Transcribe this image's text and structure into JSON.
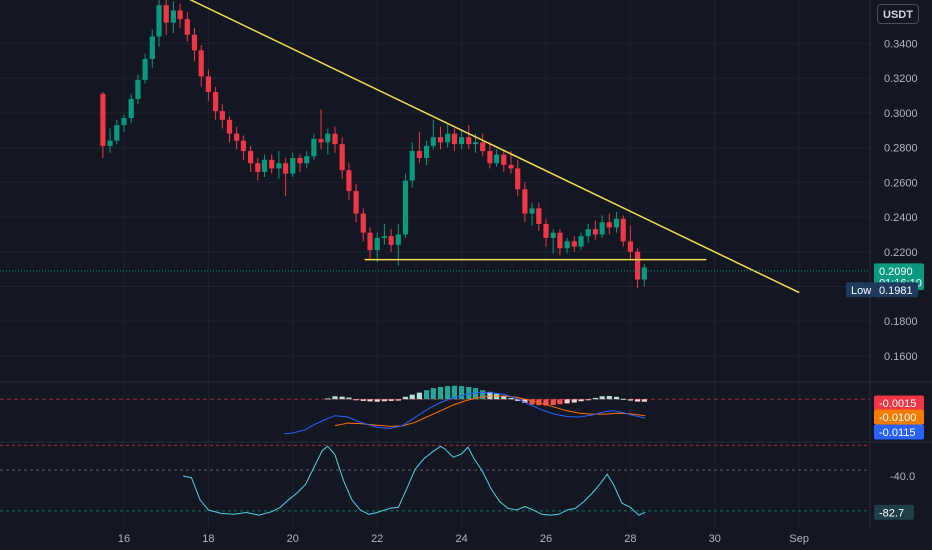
{
  "currency_button": "USDT",
  "chart_data": [
    {
      "type": "candlestick",
      "title": "",
      "ylim": [
        0.145,
        0.365
      ],
      "y_ticks": [
        "0.3400",
        "0.3200",
        "0.3000",
        "0.2800",
        "0.2600",
        "0.2400",
        "0.2200",
        "0.1800",
        "0.1600"
      ],
      "x_ticks": [
        "16",
        "18",
        "20",
        "22",
        "24",
        "26",
        "28",
        "30",
        "Sep"
      ],
      "x_tick_days": [
        16,
        18,
        20,
        22,
        24,
        26,
        28,
        30,
        32
      ],
      "candles": [
        [
          15.5,
          0.311,
          0.312,
          0.274,
          0.281
        ],
        [
          15.67,
          0.281,
          0.291,
          0.277,
          0.284
        ],
        [
          15.83,
          0.284,
          0.296,
          0.282,
          0.293
        ],
        [
          16.0,
          0.293,
          0.299,
          0.289,
          0.297
        ],
        [
          16.17,
          0.297,
          0.311,
          0.294,
          0.308
        ],
        [
          16.33,
          0.308,
          0.322,
          0.305,
          0.319
        ],
        [
          16.5,
          0.319,
          0.334,
          0.317,
          0.331
        ],
        [
          16.67,
          0.331,
          0.348,
          0.326,
          0.344
        ],
        [
          16.83,
          0.344,
          0.365,
          0.338,
          0.362
        ],
        [
          17.0,
          0.362,
          0.365,
          0.345,
          0.352
        ],
        [
          17.17,
          0.352,
          0.364,
          0.346,
          0.359
        ],
        [
          17.33,
          0.359,
          0.363,
          0.349,
          0.354
        ],
        [
          17.5,
          0.354,
          0.358,
          0.341,
          0.345
        ],
        [
          17.67,
          0.345,
          0.349,
          0.33,
          0.336
        ],
        [
          17.83,
          0.336,
          0.339,
          0.315,
          0.321
        ],
        [
          18.0,
          0.321,
          0.325,
          0.307,
          0.312
        ],
        [
          18.17,
          0.312,
          0.315,
          0.296,
          0.301
        ],
        [
          18.33,
          0.301,
          0.305,
          0.291,
          0.296
        ],
        [
          18.5,
          0.296,
          0.298,
          0.283,
          0.288
        ],
        [
          18.67,
          0.288,
          0.292,
          0.279,
          0.284
        ],
        [
          18.83,
          0.284,
          0.287,
          0.273,
          0.278
        ],
        [
          19.0,
          0.278,
          0.281,
          0.266,
          0.271
        ],
        [
          19.17,
          0.271,
          0.274,
          0.261,
          0.266
        ],
        [
          19.33,
          0.266,
          0.276,
          0.263,
          0.273
        ],
        [
          19.5,
          0.273,
          0.276,
          0.265,
          0.268
        ],
        [
          19.67,
          0.268,
          0.278,
          0.262,
          0.271
        ],
        [
          19.83,
          0.271,
          0.274,
          0.252,
          0.265
        ],
        [
          20.0,
          0.265,
          0.277,
          0.263,
          0.274
        ],
        [
          20.17,
          0.274,
          0.276,
          0.266,
          0.271
        ],
        [
          20.33,
          0.271,
          0.278,
          0.268,
          0.275
        ],
        [
          20.5,
          0.275,
          0.288,
          0.273,
          0.285
        ],
        [
          20.67,
          0.285,
          0.302,
          0.279,
          0.283
        ],
        [
          20.83,
          0.283,
          0.291,
          0.276,
          0.288
        ],
        [
          21.0,
          0.288,
          0.292,
          0.277,
          0.282
        ],
        [
          21.17,
          0.282,
          0.286,
          0.262,
          0.267
        ],
        [
          21.33,
          0.267,
          0.271,
          0.25,
          0.255
        ],
        [
          21.5,
          0.255,
          0.259,
          0.237,
          0.242
        ],
        [
          21.67,
          0.242,
          0.245,
          0.226,
          0.231
        ],
        [
          21.83,
          0.231,
          0.234,
          0.216,
          0.221
        ],
        [
          22.0,
          0.221,
          0.231,
          0.214,
          0.228
        ],
        [
          22.17,
          0.228,
          0.236,
          0.224,
          0.229
        ],
        [
          22.33,
          0.229,
          0.233,
          0.22,
          0.224
        ],
        [
          22.5,
          0.224,
          0.236,
          0.212,
          0.23
        ],
        [
          22.67,
          0.23,
          0.265,
          0.228,
          0.261
        ],
        [
          22.83,
          0.261,
          0.283,
          0.257,
          0.278
        ],
        [
          23.0,
          0.278,
          0.289,
          0.271,
          0.274
        ],
        [
          23.17,
          0.274,
          0.284,
          0.27,
          0.281
        ],
        [
          23.33,
          0.281,
          0.296,
          0.279,
          0.286
        ],
        [
          23.5,
          0.286,
          0.292,
          0.279,
          0.283
        ],
        [
          23.67,
          0.283,
          0.294,
          0.28,
          0.288
        ],
        [
          23.83,
          0.288,
          0.291,
          0.278,
          0.282
        ],
        [
          24.0,
          0.282,
          0.29,
          0.279,
          0.286
        ],
        [
          24.17,
          0.286,
          0.293,
          0.279,
          0.282
        ],
        [
          24.33,
          0.282,
          0.288,
          0.277,
          0.283
        ],
        [
          24.5,
          0.283,
          0.288,
          0.275,
          0.278
        ],
        [
          24.67,
          0.278,
          0.283,
          0.268,
          0.271
        ],
        [
          24.83,
          0.271,
          0.279,
          0.269,
          0.276
        ],
        [
          25.0,
          0.276,
          0.278,
          0.266,
          0.27
        ],
        [
          25.17,
          0.27,
          0.278,
          0.265,
          0.268
        ],
        [
          25.33,
          0.268,
          0.273,
          0.252,
          0.256
        ],
        [
          25.5,
          0.256,
          0.26,
          0.237,
          0.242
        ],
        [
          25.67,
          0.242,
          0.248,
          0.235,
          0.245
        ],
        [
          25.83,
          0.245,
          0.248,
          0.232,
          0.236
        ],
        [
          26.0,
          0.236,
          0.239,
          0.223,
          0.228
        ],
        [
          26.17,
          0.228,
          0.233,
          0.219,
          0.231
        ],
        [
          26.33,
          0.231,
          0.233,
          0.218,
          0.222
        ],
        [
          26.5,
          0.222,
          0.228,
          0.219,
          0.226
        ],
        [
          26.67,
          0.226,
          0.229,
          0.22,
          0.223
        ],
        [
          26.83,
          0.223,
          0.231,
          0.221,
          0.229
        ],
        [
          27.0,
          0.229,
          0.236,
          0.225,
          0.233
        ],
        [
          27.17,
          0.233,
          0.238,
          0.227,
          0.23
        ],
        [
          27.33,
          0.23,
          0.241,
          0.228,
          0.237
        ],
        [
          27.5,
          0.237,
          0.242,
          0.23,
          0.234
        ],
        [
          27.67,
          0.234,
          0.243,
          0.231,
          0.239
        ],
        [
          27.83,
          0.239,
          0.241,
          0.223,
          0.226
        ],
        [
          28.0,
          0.226,
          0.235,
          0.215,
          0.22
        ],
        [
          28.17,
          0.22,
          0.222,
          0.199,
          0.204
        ],
        [
          28.33,
          0.204,
          0.213,
          0.2,
          0.211
        ]
      ],
      "trendlines": [
        {
          "from": [
            17.5,
            0.366
          ],
          "to": [
            32.0,
            0.1965
          ],
          "color": "#f5dd4b"
        },
        {
          "from": [
            21.7,
            0.2155
          ],
          "to": [
            29.8,
            0.2155
          ],
          "color": "#f5dd4b"
        }
      ],
      "price_line": 0.209,
      "labels": [
        {
          "text": "0.2090",
          "value": 0.209,
          "bg": "#089981"
        },
        {
          "text": "01:16:10",
          "value": 0.2045,
          "bg": "#089981"
        },
        {
          "text": "Low",
          "value": 0.1981,
          "bg": "#1e3a5f"
        },
        {
          "text": "0.1981",
          "value": 0.1981,
          "bg": "#1e3a5f"
        }
      ]
    },
    {
      "type": "macd",
      "histogram": [
        [
          20.83,
          0.0005
        ],
        [
          21.0,
          0.0018
        ],
        [
          21.17,
          0.0016
        ],
        [
          21.33,
          0.001
        ],
        [
          21.5,
          -0.0005
        ],
        [
          21.67,
          -0.001
        ],
        [
          21.83,
          -0.0013
        ],
        [
          22.0,
          -0.0015
        ],
        [
          22.17,
          -0.0012
        ],
        [
          22.33,
          -0.001
        ],
        [
          22.5,
          -0.0008
        ],
        [
          22.67,
          0.0015
        ],
        [
          22.83,
          0.0028
        ],
        [
          23.0,
          0.004
        ],
        [
          23.17,
          0.0055
        ],
        [
          23.33,
          0.0068
        ],
        [
          23.5,
          0.0075
        ],
        [
          23.67,
          0.008
        ],
        [
          23.83,
          0.0082
        ],
        [
          24.0,
          0.008
        ],
        [
          24.17,
          0.0075
        ],
        [
          24.33,
          0.0068
        ],
        [
          24.5,
          0.0055
        ],
        [
          24.67,
          0.0045
        ],
        [
          24.83,
          0.0033
        ],
        [
          25.0,
          0.0018
        ],
        [
          25.17,
          0.0008
        ],
        [
          25.33,
          -0.001
        ],
        [
          25.5,
          -0.0022
        ],
        [
          25.67,
          -0.0032
        ],
        [
          25.83,
          -0.0036
        ],
        [
          26.0,
          -0.0038
        ],
        [
          26.17,
          -0.0035
        ],
        [
          26.33,
          -0.003
        ],
        [
          26.5,
          -0.0025
        ],
        [
          26.67,
          -0.002
        ],
        [
          26.83,
          -0.0012
        ],
        [
          27.0,
          -0.0005
        ],
        [
          27.17,
          0.0008
        ],
        [
          27.33,
          0.0018
        ],
        [
          27.5,
          0.002
        ],
        [
          27.67,
          0.0015
        ],
        [
          27.83,
          0.0003
        ],
        [
          28.0,
          -0.0008
        ],
        [
          28.17,
          -0.0014
        ],
        [
          28.33,
          -0.0015
        ]
      ],
      "macd_line": [
        [
          19.8,
          -0.021
        ],
        [
          20.0,
          -0.0205
        ],
        [
          20.3,
          -0.0185
        ],
        [
          20.5,
          -0.0155
        ],
        [
          20.8,
          -0.012
        ],
        [
          21.0,
          -0.01
        ],
        [
          21.3,
          -0.0108
        ],
        [
          21.6,
          -0.014
        ],
        [
          22.0,
          -0.017
        ],
        [
          22.3,
          -0.0178
        ],
        [
          22.6,
          -0.016
        ],
        [
          22.9,
          -0.011
        ],
        [
          23.2,
          -0.006
        ],
        [
          23.5,
          -0.002
        ],
        [
          23.8,
          0.001
        ],
        [
          24.1,
          0.003
        ],
        [
          24.4,
          0.004
        ],
        [
          24.7,
          0.004
        ],
        [
          25.0,
          0.003
        ],
        [
          25.3,
          0.0005
        ],
        [
          25.6,
          -0.003
        ],
        [
          25.9,
          -0.0065
        ],
        [
          26.2,
          -0.009
        ],
        [
          26.5,
          -0.0105
        ],
        [
          26.8,
          -0.0108
        ],
        [
          27.1,
          -0.0095
        ],
        [
          27.4,
          -0.0075
        ],
        [
          27.6,
          -0.007
        ],
        [
          27.8,
          -0.008
        ],
        [
          28.1,
          -0.01
        ],
        [
          28.35,
          -0.0115
        ]
      ],
      "signal_line": [
        [
          21.0,
          -0.016
        ],
        [
          21.3,
          -0.0145
        ],
        [
          21.6,
          -0.0148
        ],
        [
          22.0,
          -0.0158
        ],
        [
          22.3,
          -0.0165
        ],
        [
          22.6,
          -0.0162
        ],
        [
          22.9,
          -0.014
        ],
        [
          23.2,
          -0.0105
        ],
        [
          23.5,
          -0.007
        ],
        [
          23.8,
          -0.0035
        ],
        [
          24.1,
          -0.0008
        ],
        [
          24.4,
          0.001
        ],
        [
          24.7,
          0.002
        ],
        [
          25.0,
          0.002
        ],
        [
          25.3,
          0.0012
        ],
        [
          25.6,
          -0.0005
        ],
        [
          25.9,
          -0.0025
        ],
        [
          26.2,
          -0.0048
        ],
        [
          26.5,
          -0.007
        ],
        [
          26.8,
          -0.0085
        ],
        [
          27.1,
          -0.009
        ],
        [
          27.4,
          -0.009
        ],
        [
          27.7,
          -0.0085
        ],
        [
          28.0,
          -0.0088
        ],
        [
          28.35,
          -0.01
        ]
      ],
      "ylim": [
        -0.026,
        0.0105
      ],
      "zero_line": 0,
      "labels": [
        {
          "text": "-0.0015",
          "value": -0.0015,
          "bg": "#f23645"
        },
        {
          "text": "-0.0100",
          "value": -0.01,
          "bg": "#f57c00"
        },
        {
          "text": "-0.0115",
          "value": -0.0115,
          "bg": "#2962ff"
        }
      ]
    },
    {
      "type": "oscillator",
      "line": [
        [
          17.4,
          -40
        ],
        [
          17.6,
          -42
        ],
        [
          17.8,
          -68
        ],
        [
          18.0,
          -80
        ],
        [
          18.3,
          -84
        ],
        [
          18.6,
          -85
        ],
        [
          18.9,
          -83
        ],
        [
          19.2,
          -86
        ],
        [
          19.5,
          -82
        ],
        [
          19.7,
          -77
        ],
        [
          19.9,
          -68
        ],
        [
          20.1,
          -60
        ],
        [
          20.3,
          -50
        ],
        [
          20.5,
          -30
        ],
        [
          20.7,
          -10
        ],
        [
          20.83,
          -5
        ],
        [
          21.0,
          -15
        ],
        [
          21.2,
          -45
        ],
        [
          21.4,
          -68
        ],
        [
          21.6,
          -80
        ],
        [
          21.8,
          -85
        ],
        [
          22.0,
          -83
        ],
        [
          22.3,
          -78
        ],
        [
          22.5,
          -77
        ],
        [
          22.7,
          -55
        ],
        [
          22.9,
          -32
        ],
        [
          23.1,
          -20
        ],
        [
          23.3,
          -12
        ],
        [
          23.5,
          -5
        ],
        [
          23.6,
          -8
        ],
        [
          23.8,
          -18
        ],
        [
          24.0,
          -14
        ],
        [
          24.15,
          -6
        ],
        [
          24.3,
          -20
        ],
        [
          24.5,
          -35
        ],
        [
          24.7,
          -55
        ],
        [
          24.9,
          -70
        ],
        [
          25.1,
          -78
        ],
        [
          25.3,
          -80
        ],
        [
          25.5,
          -76
        ],
        [
          25.7,
          -80
        ],
        [
          25.9,
          -85
        ],
        [
          26.1,
          -86
        ],
        [
          26.3,
          -85
        ],
        [
          26.5,
          -80
        ],
        [
          26.7,
          -78
        ],
        [
          26.9,
          -70
        ],
        [
          27.1,
          -60
        ],
        [
          27.3,
          -48
        ],
        [
          27.45,
          -38
        ],
        [
          27.6,
          -50
        ],
        [
          27.8,
          -72
        ],
        [
          28.0,
          -77
        ],
        [
          28.2,
          -86
        ],
        [
          28.35,
          -82.7
        ]
      ],
      "ylim": [
        -100,
        0
      ],
      "levels": [
        -4,
        -33,
        -81
      ],
      "tick": "-40.0",
      "tick_value": -40,
      "labels": [
        {
          "text": "-82.7",
          "value": -82.7,
          "bg": "#1e3f48"
        }
      ]
    }
  ]
}
